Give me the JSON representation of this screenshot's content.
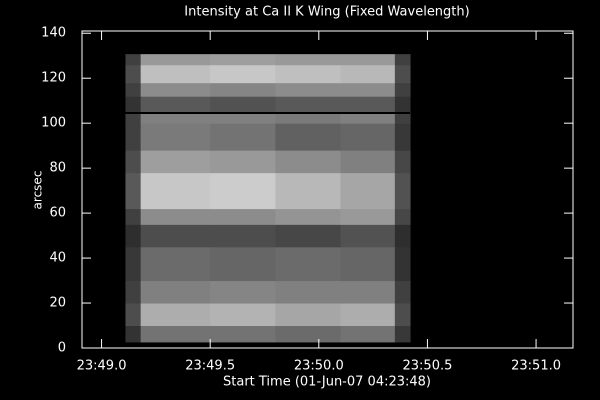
{
  "chart_data": {
    "type": "heatmap",
    "title": "Intensity at Ca II K Wing (Fixed Wavelength)",
    "xlabel": "Start Time (01-Jun-07 04:23:48)",
    "ylabel": "arcsec",
    "xlim": [
      48.91,
      51.17
    ],
    "xticks": [
      {
        "value": 49.0,
        "label": "23:49.0"
      },
      {
        "value": 49.5,
        "label": "23:49.5"
      },
      {
        "value": 50.0,
        "label": "23:50.0"
      },
      {
        "value": 50.5,
        "label": "23:50.5"
      },
      {
        "value": 51.0,
        "label": "23:51.0"
      }
    ],
    "ylim": [
      0,
      141
    ],
    "yticks": [
      0,
      20,
      40,
      60,
      80,
      100,
      120,
      140
    ],
    "x_edges": [
      49.11,
      49.18,
      49.5,
      49.8,
      50.1,
      50.35,
      50.42
    ],
    "y_edges": [
      2.7,
      10,
      20,
      30,
      45,
      55,
      62,
      78,
      88,
      100,
      105,
      112,
      118,
      126,
      130.7
    ],
    "z": [
      [
        0.2,
        0.45,
        0.45,
        0.42,
        0.45,
        0.22
      ],
      [
        0.3,
        0.68,
        0.7,
        0.65,
        0.68,
        0.3
      ],
      [
        0.25,
        0.5,
        0.52,
        0.5,
        0.5,
        0.25
      ],
      [
        0.22,
        0.42,
        0.4,
        0.42,
        0.4,
        0.2
      ],
      [
        0.18,
        0.3,
        0.3,
        0.28,
        0.32,
        0.18
      ],
      [
        0.25,
        0.55,
        0.55,
        0.58,
        0.6,
        0.28
      ],
      [
        0.35,
        0.78,
        0.8,
        0.72,
        0.65,
        0.32
      ],
      [
        0.3,
        0.62,
        0.6,
        0.55,
        0.5,
        0.28
      ],
      [
        0.25,
        0.48,
        0.45,
        0.38,
        0.4,
        0.22
      ],
      [
        0.25,
        0.5,
        0.5,
        0.48,
        0.5,
        0.25
      ],
      [
        0.2,
        0.35,
        0.32,
        0.35,
        0.35,
        0.2
      ],
      [
        0.25,
        0.55,
        0.52,
        0.55,
        0.55,
        0.25
      ],
      [
        0.3,
        0.75,
        0.78,
        0.75,
        0.72,
        0.3
      ],
      [
        0.25,
        0.6,
        0.62,
        0.6,
        0.6,
        0.25
      ]
    ],
    "hline": 104.5,
    "colormap": "gray"
  }
}
